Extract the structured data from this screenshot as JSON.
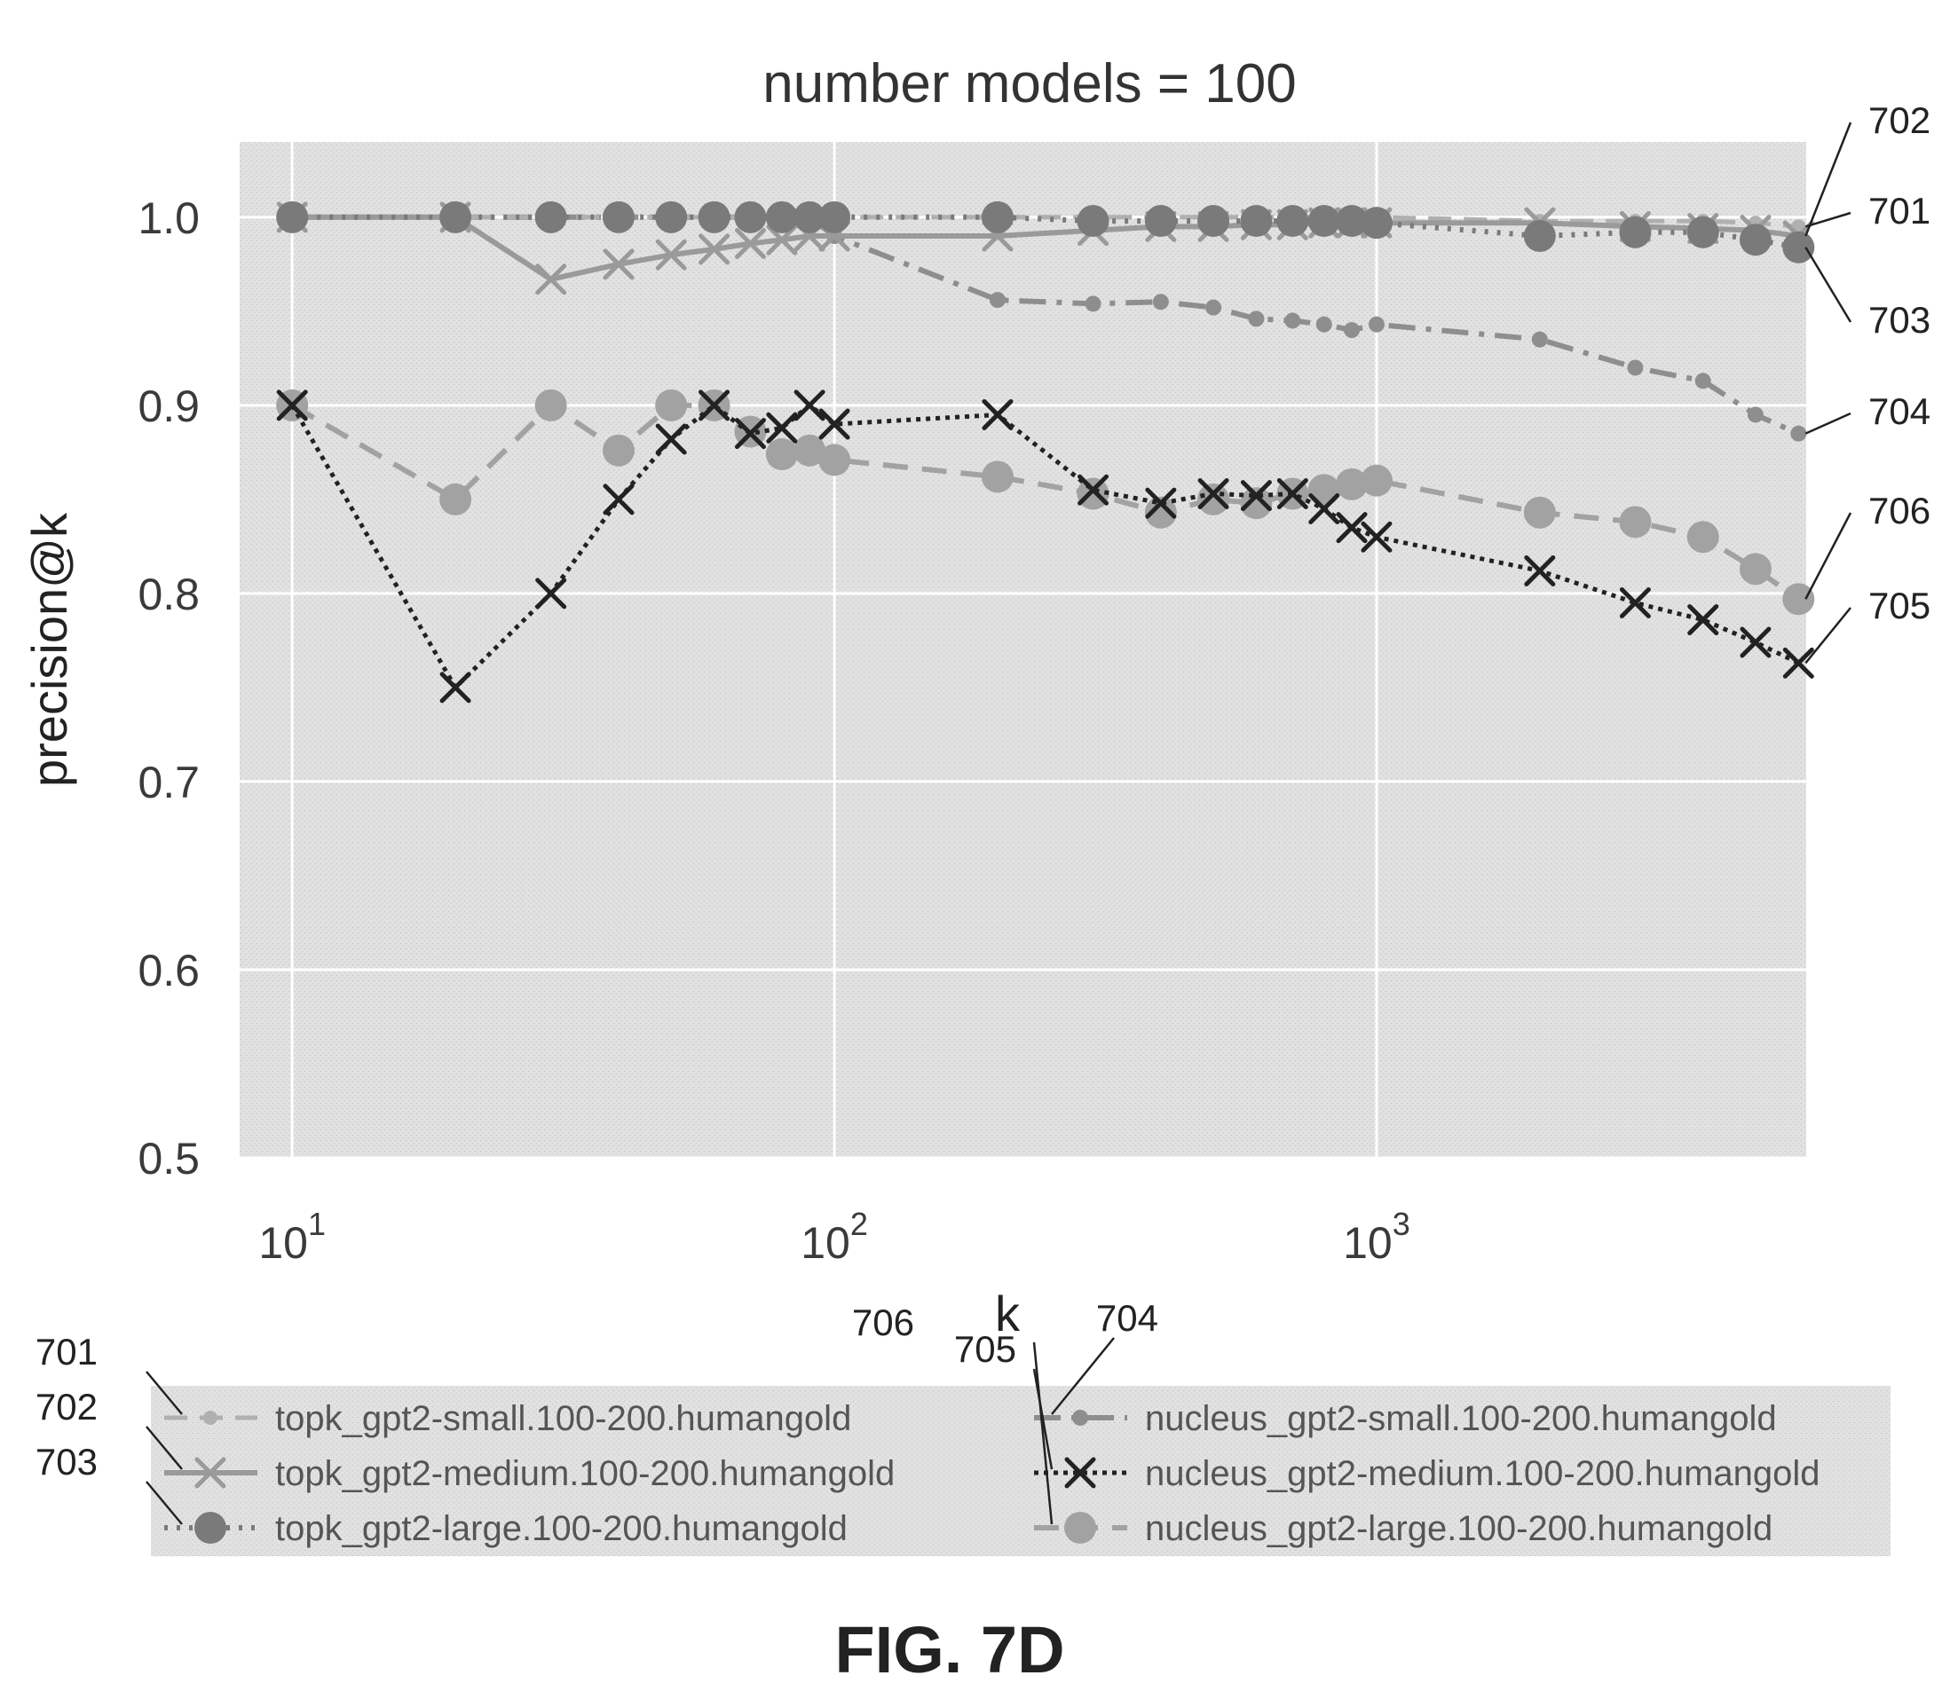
{
  "figure_caption": "FIG. 7D",
  "colors": {
    "plot_background": "#e4e4e4",
    "gridline": "#ffffff",
    "topk_small": "#b0b0b0",
    "topk_medium": "#9a9a9a",
    "topk_large": "#7a7a7a",
    "nucleus_small": "#8e8e8e",
    "nucleus_medium": "#222222",
    "nucleus_large": "#a2a2a2"
  },
  "chart_data": {
    "type": "line",
    "title": "number models = 100",
    "xlabel": "k",
    "ylabel": "precision@k",
    "x_scale": "log",
    "xlim": [
      8,
      6200
    ],
    "ylim": [
      0.5,
      1.04
    ],
    "x_ticks": [
      {
        "value": 10,
        "base": "10",
        "exp": "1"
      },
      {
        "value": 100,
        "base": "10",
        "exp": "2"
      },
      {
        "value": 1000,
        "base": "10",
        "exp": "3"
      }
    ],
    "y_ticks": [
      {
        "value": 0.5,
        "label": "0.5"
      },
      {
        "value": 0.6,
        "label": "0.6"
      },
      {
        "value": 0.7,
        "label": "0.7"
      },
      {
        "value": 0.8,
        "label": "0.8"
      },
      {
        "value": 0.9,
        "label": "0.9"
      },
      {
        "value": 1.0,
        "label": "1.0"
      }
    ],
    "grid": true,
    "legend_position": "bottom",
    "x": [
      10,
      20,
      30,
      40,
      50,
      60,
      70,
      80,
      90,
      100,
      200,
      300,
      400,
      500,
      600,
      700,
      800,
      900,
      1000,
      2000,
      3000,
      4000,
      5000,
      6000
    ],
    "series": [
      {
        "name": "topk_gpt2-small.100-200.humangold",
        "ref": "701",
        "marker": "dot",
        "dash": "dash",
        "values": [
          1.0,
          1.0,
          1.0,
          1.0,
          1.0,
          1.0,
          1.0,
          1.0,
          1.0,
          1.0,
          1.0,
          1.0,
          1.0,
          1.0,
          1.0,
          1.0,
          1.0,
          1.0,
          1.0,
          0.998,
          0.998,
          0.998,
          0.997,
          0.995
        ]
      },
      {
        "name": "topk_gpt2-medium.100-200.humangold",
        "ref": "702",
        "marker": "x",
        "dash": "solid",
        "values": [
          1.0,
          1.0,
          0.967,
          0.975,
          0.98,
          0.983,
          0.986,
          0.988,
          0.99,
          0.99,
          0.99,
          0.993,
          0.995,
          0.995,
          0.996,
          0.996,
          0.997,
          0.997,
          0.997,
          0.997,
          0.995,
          0.994,
          0.993,
          0.99
        ]
      },
      {
        "name": "topk_gpt2-large.100-200.humangold",
        "ref": "703",
        "marker": "circle",
        "dash": "dot",
        "values": [
          1.0,
          1.0,
          1.0,
          1.0,
          1.0,
          1.0,
          1.0,
          1.0,
          1.0,
          1.0,
          1.0,
          0.998,
          0.998,
          0.998,
          0.998,
          0.998,
          0.998,
          0.998,
          0.997,
          0.99,
          0.992,
          0.992,
          0.988,
          0.984
        ]
      },
      {
        "name": "nucleus_gpt2-small.100-200.humangold",
        "ref": "704",
        "marker": "dot",
        "dash": "dashdot",
        "values": [
          1.0,
          1.0,
          1.0,
          1.0,
          1.0,
          1.0,
          1.0,
          1.0,
          1.0,
          0.99,
          0.956,
          0.954,
          0.955,
          0.952,
          0.946,
          0.945,
          0.943,
          0.94,
          0.943,
          0.935,
          0.92,
          0.913,
          0.895,
          0.885
        ]
      },
      {
        "name": "nucleus_gpt2-medium.100-200.humangold",
        "ref": "705",
        "marker": "x",
        "dash": "dot",
        "values": [
          0.9,
          0.75,
          0.8,
          0.85,
          0.882,
          0.9,
          0.885,
          0.888,
          0.9,
          0.89,
          0.895,
          0.855,
          0.848,
          0.853,
          0.852,
          0.853,
          0.845,
          0.835,
          0.83,
          0.812,
          0.795,
          0.786,
          0.774,
          0.763
        ]
      },
      {
        "name": "nucleus_gpt2-large.100-200.humangold",
        "ref": "706",
        "marker": "circle",
        "dash": "dash",
        "values": [
          0.9,
          0.85,
          0.9,
          0.876,
          0.9,
          0.9,
          0.886,
          0.874,
          0.876,
          0.871,
          0.862,
          0.853,
          0.843,
          0.85,
          0.848,
          0.853,
          0.855,
          0.858,
          0.86,
          0.843,
          0.838,
          0.83,
          0.813,
          0.797
        ]
      }
    ],
    "callouts": [
      {
        "ref": "702",
        "series": 1
      },
      {
        "ref": "701",
        "series": 0
      },
      {
        "ref": "703",
        "series": 2
      },
      {
        "ref": "704",
        "series": 3
      },
      {
        "ref": "706",
        "series": 5
      },
      {
        "ref": "705",
        "series": 4
      }
    ]
  }
}
